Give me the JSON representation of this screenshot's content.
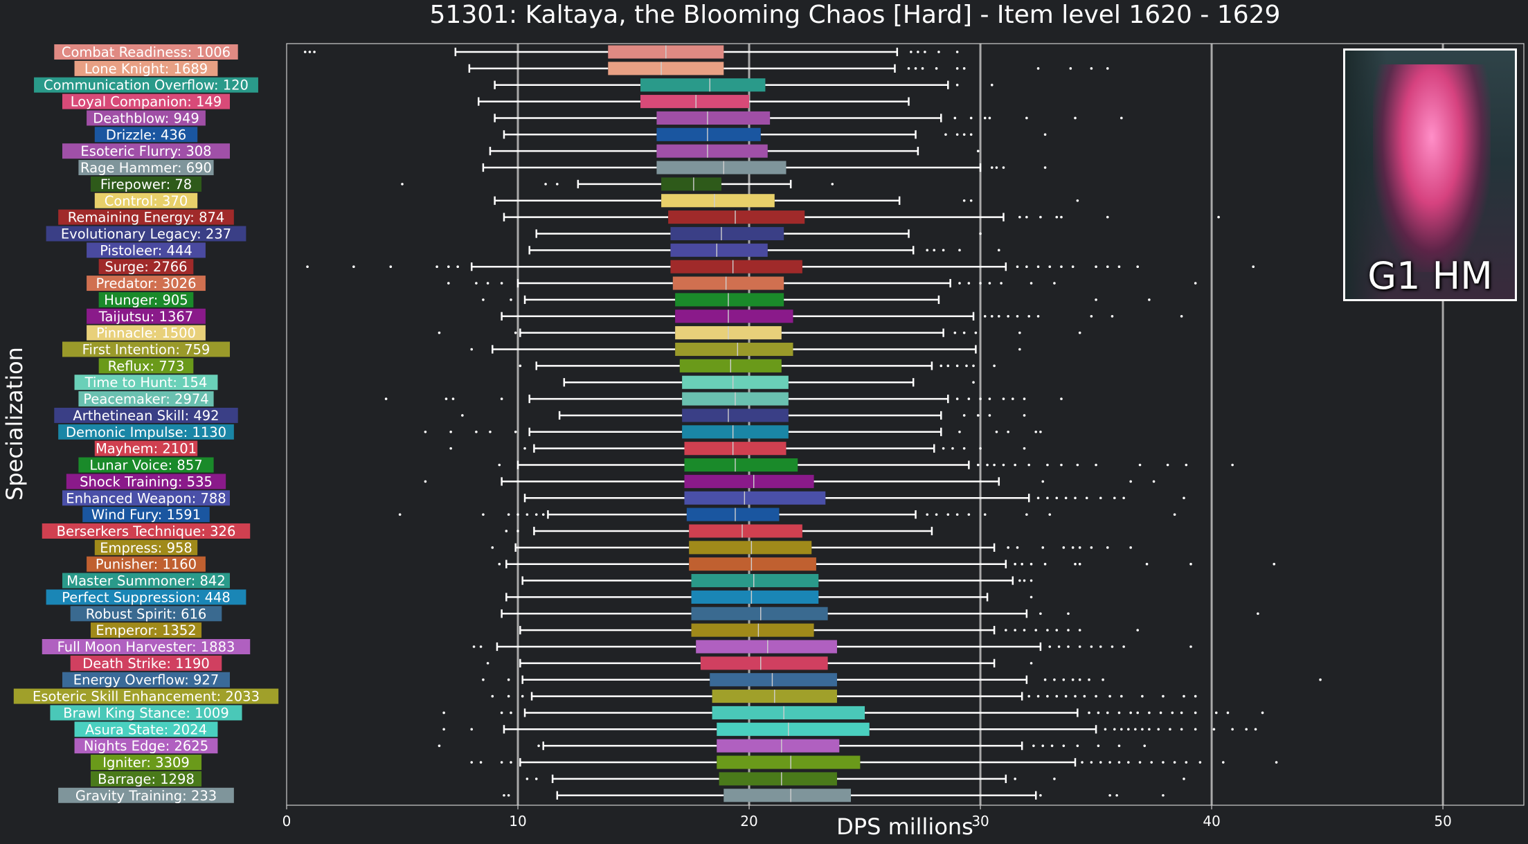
{
  "chart_data": {
    "type": "box",
    "title": "51301: Kaltaya, the Blooming Chaos [Hard] - Item level 1620 - 1629",
    "xlabel": "DPS millions",
    "ylabel": "Specialization",
    "xlim": [
      0,
      53.5
    ],
    "xticks": [
      0,
      10,
      20,
      30,
      40,
      50
    ],
    "grid_x": true,
    "thumbnail_label": "G1 HM",
    "series": [
      {
        "name": "Combat Readiness",
        "count": 1006,
        "color": "#e08a83",
        "whislo": 7.3,
        "q1": 13.9,
        "med": 16.4,
        "q3": 18.9,
        "whishi": 26.4,
        "fliers": [
          0.8,
          1.0,
          1.2,
          27.0,
          27.3,
          27.6,
          28.2,
          29.0
        ]
      },
      {
        "name": "Lone Knight",
        "count": 1689,
        "color": "#e8a084",
        "whislo": 7.9,
        "q1": 13.9,
        "med": 16.2,
        "q3": 18.9,
        "whishi": 26.3,
        "fliers": [
          26.9,
          27.2,
          27.5,
          28.1,
          29.0,
          29.3,
          32.5,
          33.9,
          34.8,
          35.5
        ]
      },
      {
        "name": "Communication Overflow",
        "count": 120,
        "color": "#2a9a8a",
        "whislo": 9.0,
        "q1": 15.3,
        "med": 18.3,
        "q3": 20.7,
        "whishi": 28.6,
        "fliers": [
          29.0,
          30.5
        ]
      },
      {
        "name": "Loyal Companion",
        "count": 149,
        "color": "#d84a78",
        "whislo": 8.3,
        "q1": 15.3,
        "med": 17.7,
        "q3": 20.0,
        "whishi": 26.9,
        "fliers": []
      },
      {
        "name": "Deathblow",
        "count": 949,
        "color": "#a04fa6",
        "whislo": 9.0,
        "q1": 16.0,
        "med": 18.2,
        "q3": 20.9,
        "whishi": 28.3,
        "fliers": [
          28.9,
          29.6,
          30.2,
          30.4,
          32.0,
          34.1,
          36.1
        ]
      },
      {
        "name": "Drizzle",
        "count": 436,
        "color": "#1a56a0",
        "whislo": 9.4,
        "q1": 16.0,
        "med": 18.2,
        "q3": 20.5,
        "whishi": 27.2,
        "fliers": [
          28.5,
          29.0,
          29.3,
          29.6,
          32.8
        ]
      },
      {
        "name": "Esoteric Flurry",
        "count": 308,
        "color": "#a050a8",
        "whislo": 8.8,
        "q1": 16.0,
        "med": 18.2,
        "q3": 20.8,
        "whishi": 27.3,
        "fliers": [
          29.9
        ]
      },
      {
        "name": "Rage Hammer",
        "count": 690,
        "color": "#7f959b",
        "whislo": 8.5,
        "q1": 16.0,
        "med": 18.9,
        "q3": 21.6,
        "whishi": 30.0,
        "fliers": [
          30.5,
          30.7,
          31.0,
          32.8
        ]
      },
      {
        "name": "Firepower",
        "count": 78,
        "color": "#2e5a1a",
        "whislo": 12.6,
        "q1": 16.2,
        "med": 17.6,
        "q3": 18.8,
        "whishi": 21.8,
        "fliers": [
          5.0,
          11.2,
          11.7,
          23.6
        ]
      },
      {
        "name": "Control",
        "count": 370,
        "color": "#e8d06a",
        "whislo": 9.0,
        "q1": 16.2,
        "med": 18.5,
        "q3": 21.1,
        "whishi": 26.5,
        "fliers": [
          29.3,
          29.6,
          34.2
        ]
      },
      {
        "name": "Remaining Energy",
        "count": 874,
        "color": "#a02a2a",
        "whislo": 9.4,
        "q1": 16.5,
        "med": 19.4,
        "q3": 22.4,
        "whishi": 31.0,
        "fliers": [
          31.7,
          32.0,
          32.6,
          33.3,
          33.5,
          35.5,
          40.3
        ]
      },
      {
        "name": "Evolutionary Legacy",
        "count": 237,
        "color": "#3a3f86",
        "whislo": 10.8,
        "q1": 16.6,
        "med": 18.8,
        "q3": 21.5,
        "whishi": 26.9,
        "fliers": [
          30.0
        ]
      },
      {
        "name": "Pistoleer",
        "count": 444,
        "color": "#4a4aa0",
        "whislo": 10.5,
        "q1": 16.6,
        "med": 18.6,
        "q3": 20.8,
        "whishi": 27.1,
        "fliers": [
          27.7,
          28.0,
          28.4,
          29.1,
          30.8
        ]
      },
      {
        "name": "Surge",
        "count": 2766,
        "color": "#a02a2a",
        "whislo": 8.0,
        "q1": 16.6,
        "med": 19.3,
        "q3": 22.3,
        "whishi": 31.1,
        "fliers": [
          0.9,
          2.9,
          4.5,
          6.5,
          7.0,
          7.4,
          31.6,
          32.0,
          32.5,
          33.0,
          33.5,
          34.0,
          35.0,
          35.5,
          36.0,
          36.8,
          41.8
        ]
      },
      {
        "name": "Predator",
        "count": 3026,
        "color": "#d07050",
        "whislo": 10.0,
        "q1": 16.7,
        "med": 19.0,
        "q3": 21.5,
        "whishi": 28.7,
        "fliers": [
          7.0,
          8.2,
          8.7,
          9.3,
          29.1,
          29.5,
          30.0,
          30.4,
          30.9,
          32.2,
          33.2,
          39.3
        ]
      },
      {
        "name": "Hunger",
        "count": 905,
        "color": "#1a8a2a",
        "whislo": 10.3,
        "q1": 16.8,
        "med": 19.1,
        "q3": 21.5,
        "whishi": 28.2,
        "fliers": [
          8.5,
          9.7,
          35.0,
          37.3
        ]
      },
      {
        "name": "Taijutsu",
        "count": 1367,
        "color": "#8a1a8a",
        "whislo": 9.3,
        "q1": 16.8,
        "med": 19.1,
        "q3": 21.9,
        "whishi": 29.7,
        "fliers": [
          30.2,
          30.5,
          30.8,
          31.2,
          31.6,
          32.1,
          32.5,
          34.8,
          35.7,
          38.7
        ]
      },
      {
        "name": "Pinnacle",
        "count": 1500,
        "color": "#e8d07a",
        "whislo": 10.1,
        "q1": 16.8,
        "med": 19.1,
        "q3": 21.4,
        "whishi": 28.4,
        "fliers": [
          6.6,
          9.9,
          28.9,
          29.3,
          29.8,
          31.7,
          34.3
        ]
      },
      {
        "name": "First Intention",
        "count": 759,
        "color": "#9a9a2a",
        "whislo": 8.9,
        "q1": 16.8,
        "med": 19.5,
        "q3": 21.9,
        "whishi": 29.8,
        "fliers": [
          8.0,
          31.7
        ]
      },
      {
        "name": "Reflux",
        "count": 773,
        "color": "#6a9a1a",
        "whislo": 10.8,
        "q1": 17.0,
        "med": 19.2,
        "q3": 21.4,
        "whishi": 27.9,
        "fliers": [
          10.1,
          28.3,
          28.6,
          29.0,
          29.4,
          29.7,
          30.6
        ]
      },
      {
        "name": "Time to Hunt",
        "count": 154,
        "color": "#6ad0b8",
        "whislo": 12.0,
        "q1": 17.1,
        "med": 19.3,
        "q3": 21.7,
        "whishi": 27.1,
        "fliers": [
          29.7
        ]
      },
      {
        "name": "Peacemaker",
        "count": 2974,
        "color": "#6ac0b0",
        "whislo": 10.5,
        "q1": 17.1,
        "med": 19.4,
        "q3": 21.7,
        "whishi": 28.6,
        "fliers": [
          4.3,
          6.9,
          7.2,
          9.3,
          29.0,
          29.5,
          30.0,
          30.4,
          31.0,
          31.4,
          31.9,
          33.5
        ]
      },
      {
        "name": "Arthetinean Skill",
        "count": 492,
        "color": "#3a3f86",
        "whislo": 11.8,
        "q1": 17.1,
        "med": 19.1,
        "q3": 21.7,
        "whishi": 28.3,
        "fliers": [
          7.6,
          29.3,
          29.9,
          30.4,
          31.9
        ]
      },
      {
        "name": "Demonic Impulse",
        "count": 1130,
        "color": "#1a86a6",
        "whislo": 10.5,
        "q1": 17.1,
        "med": 19.3,
        "q3": 21.7,
        "whishi": 28.3,
        "fliers": [
          6.0,
          7.1,
          8.2,
          8.8,
          9.9,
          29.1,
          30.7,
          31.2,
          32.4,
          32.6
        ]
      },
      {
        "name": "Mayhem",
        "count": 2101,
        "color": "#d04050",
        "whislo": 10.7,
        "q1": 17.2,
        "med": 19.3,
        "q3": 21.6,
        "whishi": 28.0,
        "fliers": [
          7.1,
          10.3,
          28.4,
          28.8,
          29.3,
          30.0,
          31.9
        ]
      },
      {
        "name": "Lunar Voice",
        "count": 857,
        "color": "#1a8a2a",
        "whislo": 10.0,
        "q1": 17.2,
        "med": 19.4,
        "q3": 22.1,
        "whishi": 29.5,
        "fliers": [
          9.2,
          29.9,
          30.3,
          30.6,
          31.0,
          31.5,
          32.1,
          32.9,
          33.5,
          34.2,
          35.0,
          36.9,
          38.1,
          38.9,
          40.9
        ]
      },
      {
        "name": "Shock Training",
        "count": 535,
        "color": "#8a1a8a",
        "whislo": 9.3,
        "q1": 17.2,
        "med": 20.2,
        "q3": 22.8,
        "whishi": 30.8,
        "fliers": [
          6.0,
          32.7,
          36.5,
          37.5
        ]
      },
      {
        "name": "Enhanced Weapon",
        "count": 788,
        "color": "#4a50a8",
        "whislo": 10.3,
        "q1": 17.2,
        "med": 19.8,
        "q3": 23.3,
        "whishi": 32.1,
        "fliers": [
          32.5,
          32.9,
          33.3,
          33.7,
          34.1,
          34.6,
          35.2,
          35.8,
          36.2,
          38.8
        ]
      },
      {
        "name": "Wind Fury",
        "count": 1591,
        "color": "#1a56a0",
        "whislo": 11.3,
        "q1": 17.3,
        "med": 19.4,
        "q3": 21.3,
        "whishi": 27.2,
        "fliers": [
          4.9,
          8.5,
          9.6,
          10.0,
          10.4,
          10.8,
          11.1,
          27.7,
          28.1,
          28.6,
          29.0,
          29.5,
          30.2,
          32.0,
          33.0,
          38.4
        ]
      },
      {
        "name": "Berserkers Technique",
        "count": 326,
        "color": "#d04050",
        "whislo": 10.7,
        "q1": 17.4,
        "med": 19.7,
        "q3": 22.3,
        "whishi": 27.9,
        "fliers": [
          9.5,
          10.0
        ]
      },
      {
        "name": "Empress",
        "count": 958,
        "color": "#a08a1a",
        "whislo": 9.9,
        "q1": 17.4,
        "med": 20.1,
        "q3": 22.7,
        "whishi": 30.6,
        "fliers": [
          8.9,
          31.2,
          31.6,
          32.7,
          33.6,
          34.0,
          34.3,
          34.8,
          35.5,
          36.5
        ]
      },
      {
        "name": "Punisher",
        "count": 1160,
        "color": "#c06030",
        "whislo": 9.5,
        "q1": 17.4,
        "med": 20.1,
        "q3": 22.9,
        "whishi": 31.1,
        "fliers": [
          9.2,
          31.5,
          31.8,
          32.2,
          32.8,
          34.1,
          34.3,
          37.2,
          39.1,
          42.7
        ]
      },
      {
        "name": "Master Summoner",
        "count": 842,
        "color": "#2a9a8a",
        "whislo": 10.2,
        "q1": 17.5,
        "med": 20.2,
        "q3": 23.0,
        "whishi": 31.4,
        "fliers": [
          31.7,
          31.9,
          32.2
        ]
      },
      {
        "name": "Perfect Suppression",
        "count": 448,
        "color": "#1a86b6",
        "whislo": 9.5,
        "q1": 17.5,
        "med": 20.1,
        "q3": 23.0,
        "whishi": 30.3,
        "fliers": [
          32.2
        ]
      },
      {
        "name": "Robust Spirit",
        "count": 616,
        "color": "#3a6a90",
        "whislo": 9.3,
        "q1": 17.5,
        "med": 20.5,
        "q3": 23.4,
        "whishi": 32.0,
        "fliers": [
          32.6,
          33.8,
          42.0
        ]
      },
      {
        "name": "Emperor",
        "count": 1352,
        "color": "#a08a1a",
        "whislo": 10.1,
        "q1": 17.5,
        "med": 20.4,
        "q3": 22.8,
        "whishi": 30.6,
        "fliers": [
          31.1,
          31.5,
          31.9,
          32.4,
          32.9,
          33.3,
          33.8,
          34.3,
          36.8
        ]
      },
      {
        "name": "Full Moon Harvester",
        "count": 1883,
        "color": "#b060c0",
        "whislo": 9.1,
        "q1": 17.7,
        "med": 20.8,
        "q3": 23.8,
        "whishi": 32.6,
        "fliers": [
          8.1,
          8.4,
          33.0,
          33.4,
          33.8,
          34.3,
          34.8,
          35.2,
          35.7,
          36.2,
          39.1
        ]
      },
      {
        "name": "Death Strike",
        "count": 1190,
        "color": "#d04060",
        "whislo": 10.1,
        "q1": 17.9,
        "med": 20.5,
        "q3": 23.4,
        "whishi": 30.6,
        "fliers": [
          8.7,
          32.2
        ]
      },
      {
        "name": "Energy Overflow",
        "count": 927,
        "color": "#3a6a98",
        "whislo": 10.2,
        "q1": 18.3,
        "med": 21.0,
        "q3": 23.8,
        "whishi": 32.0,
        "fliers": [
          8.5,
          9.6,
          32.8,
          33.2,
          33.6,
          34.0,
          34.3,
          34.7,
          35.3,
          44.7
        ]
      },
      {
        "name": "Esoteric Skill Enhancement",
        "count": 2033,
        "color": "#a0a02a",
        "whislo": 10.6,
        "q1": 18.4,
        "med": 21.1,
        "q3": 23.8,
        "whishi": 31.8,
        "fliers": [
          8.9,
          9.6,
          10.2,
          32.1,
          32.5,
          32.9,
          33.3,
          33.7,
          34.1,
          34.5,
          35.0,
          35.6,
          36.1,
          37.0,
          37.9,
          38.8,
          39.3
        ]
      },
      {
        "name": "Brawl King Stance",
        "count": 1009,
        "color": "#4ac8b8",
        "whislo": 10.3,
        "q1": 18.4,
        "med": 21.5,
        "q3": 25.0,
        "whishi": 34.2,
        "fliers": [
          6.8,
          9.3,
          9.7,
          34.7,
          35.1,
          35.5,
          36.0,
          36.5,
          36.8,
          37.3,
          37.8,
          38.3,
          38.7,
          39.3,
          40.2,
          40.7,
          42.2
        ]
      },
      {
        "name": "Asura State",
        "count": 2024,
        "color": "#4ad0c0",
        "whislo": 9.4,
        "q1": 18.6,
        "med": 21.7,
        "q3": 25.2,
        "whishi": 35.0,
        "fliers": [
          6.8,
          8.0,
          35.4,
          35.8,
          36.1,
          36.4,
          36.7,
          37.0,
          37.3,
          37.7,
          38.2,
          38.7,
          39.3,
          40.1,
          40.9,
          41.5,
          41.9
        ]
      },
      {
        "name": "Nights Edge",
        "count": 2625,
        "color": "#b060c0",
        "whislo": 11.1,
        "q1": 18.6,
        "med": 21.4,
        "q3": 23.9,
        "whishi": 31.8,
        "fliers": [
          6.6,
          10.9,
          32.3,
          32.7,
          33.1,
          33.6,
          34.2,
          35.1,
          36.0,
          37.1
        ]
      },
      {
        "name": "Igniter",
        "count": 3309,
        "color": "#6a9a1a",
        "whislo": 10.1,
        "q1": 18.6,
        "med": 21.8,
        "q3": 24.8,
        "whishi": 34.1,
        "fliers": [
          8.0,
          8.4,
          9.3,
          9.7,
          34.4,
          34.8,
          35.2,
          35.6,
          36.0,
          36.4,
          36.9,
          37.4,
          37.9,
          38.4,
          38.9,
          39.5,
          40.5,
          42.8
        ]
      },
      {
        "name": "Barrage",
        "count": 1298,
        "color": "#4a7a1a",
        "whislo": 11.5,
        "q1": 18.7,
        "med": 21.4,
        "q3": 23.8,
        "whishi": 31.1,
        "fliers": [
          10.4,
          10.8,
          31.5,
          33.2,
          38.8
        ]
      },
      {
        "name": "Gravity Training",
        "count": 233,
        "color": "#7f959b",
        "whislo": 11.7,
        "q1": 18.9,
        "med": 21.8,
        "q3": 24.4,
        "whishi": 32.4,
        "fliers": [
          9.4,
          9.6,
          32.6,
          35.6,
          35.9,
          37.9
        ]
      }
    ]
  }
}
